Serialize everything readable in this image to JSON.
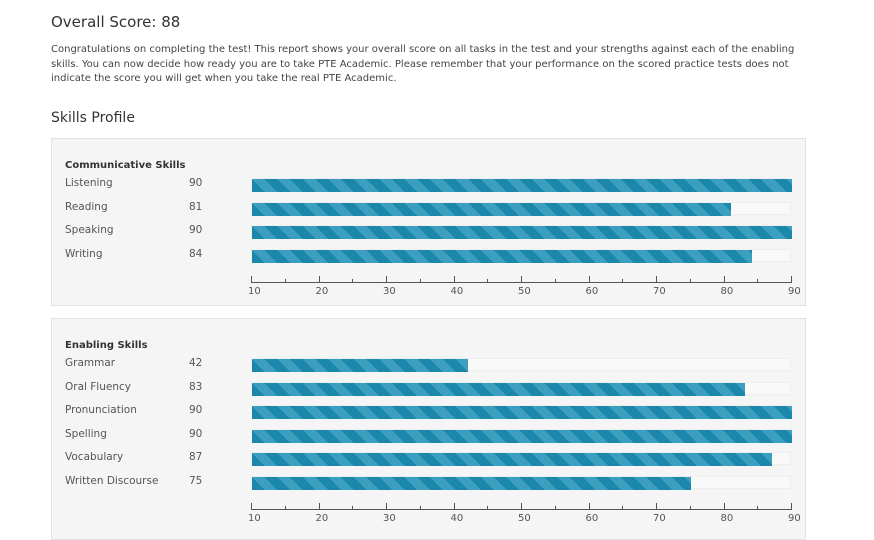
{
  "header": {
    "title": "Overall Score: 88",
    "intro": "Congratulations on completing the test! This report shows your overall score on all tasks in the test and your strengths against each of the enabling skills. You can now decide how ready you are to take PTE Academic. Please remember that your performance on the scored practice tests does not indicate the score you will get when you take the real PTE Academic."
  },
  "skills_profile": {
    "title": "Skills Profile"
  },
  "chart_data": [
    {
      "type": "bar",
      "title": "Communicative Skills",
      "categories": [
        "Listening",
        "Reading",
        "Speaking",
        "Writing"
      ],
      "values": [
        90,
        81,
        90,
        84
      ],
      "xlim": [
        10,
        90
      ],
      "ticks": [
        10,
        20,
        30,
        40,
        50,
        60,
        70,
        80,
        90
      ],
      "color": "#1a87ab"
    },
    {
      "type": "bar",
      "title": "Enabling Skills",
      "categories": [
        "Grammar",
        "Oral Fluency",
        "Pronunciation",
        "Spelling",
        "Vocabulary",
        "Written Discourse"
      ],
      "values": [
        42,
        83,
        90,
        90,
        87,
        75
      ],
      "xlim": [
        10,
        90
      ],
      "ticks": [
        10,
        20,
        30,
        40,
        50,
        60,
        70,
        80,
        90
      ],
      "color": "#1a87ab"
    }
  ]
}
